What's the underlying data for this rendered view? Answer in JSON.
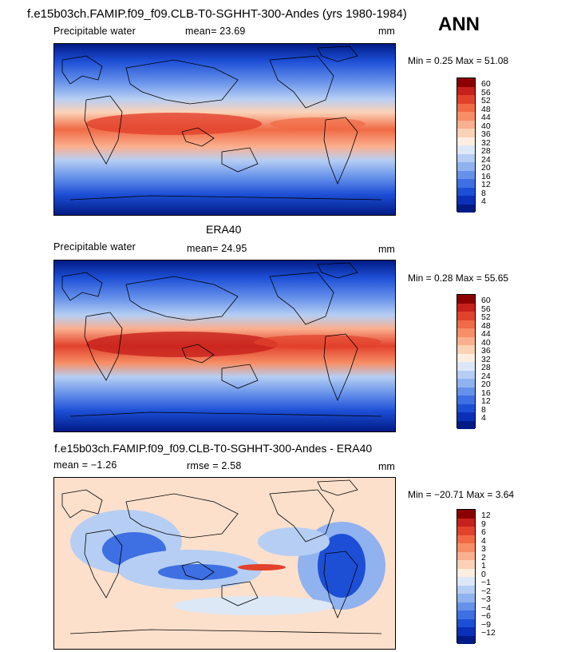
{
  "header": {
    "title": "f.e15b03ch.FAMIP.f09_f09.CLB-T0-SGHHT-300-Andes (yrs 1980-1984)",
    "season": "ANN"
  },
  "panel1": {
    "label": "Precipitable water",
    "mean_text": "mean=   23.69",
    "units": "mm",
    "minmax": "Min =    0.25  Max =   51.08"
  },
  "panel2": {
    "title": "ERA40",
    "label": "Precipitable water",
    "mean_text": "mean=   24.95",
    "units": "mm",
    "minmax": "Min =    0.28  Max =   55.65"
  },
  "panel3": {
    "title": "f.e15b03ch.FAMIP.f09_f09.CLB-T0-SGHHT-300-Andes - ERA40",
    "mean_text": "mean = −1.26",
    "rmse_text": "rmse =    2.58",
    "units": "mm",
    "minmax": "Min = −20.71  Max =    3.64"
  },
  "chart_data": [
    {
      "type": "heatmap",
      "title": "f.e15b03ch.FAMIP.f09_f09.CLB-T0-SGHHT-300-Andes (yrs 1980-1984)",
      "variable": "Precipitable water",
      "units": "mm",
      "mean": 23.69,
      "min": 0.25,
      "max": 51.08,
      "colorbar_levels": [
        "60",
        "56",
        "52",
        "48",
        "44",
        "40",
        "36",
        "32",
        "28",
        "24",
        "20",
        "16",
        "12",
        "8",
        "4"
      ],
      "colors": [
        "#8b0000",
        "#c7211c",
        "#e2412c",
        "#f06a45",
        "#f78e66",
        "#fbaf8e",
        "#fcd2b7",
        "#fdeee0",
        "#dde8f7",
        "#b6cef3",
        "#90b2ef",
        "#6691ea",
        "#3e70e3",
        "#1d4fd6",
        "#0b30b8",
        "#001b85"
      ]
    },
    {
      "type": "heatmap",
      "title": "ERA40",
      "variable": "Precipitable water",
      "units": "mm",
      "mean": 24.95,
      "min": 0.28,
      "max": 55.65,
      "colorbar_levels": [
        "60",
        "56",
        "52",
        "48",
        "44",
        "40",
        "36",
        "32",
        "28",
        "24",
        "20",
        "16",
        "12",
        "8",
        "4"
      ],
      "colors": [
        "#8b0000",
        "#c7211c",
        "#e2412c",
        "#f06a45",
        "#f78e66",
        "#fbaf8e",
        "#fcd2b7",
        "#fdeee0",
        "#dde8f7",
        "#b6cef3",
        "#90b2ef",
        "#6691ea",
        "#3e70e3",
        "#1d4fd6",
        "#0b30b8",
        "#001b85"
      ]
    },
    {
      "type": "heatmap",
      "title": "f.e15b03ch.FAMIP.f09_f09.CLB-T0-SGHHT-300-Andes - ERA40",
      "units": "mm",
      "mean": -1.26,
      "rmse": 2.58,
      "min": -20.71,
      "max": 3.64,
      "colorbar_levels": [
        "12",
        "9",
        "6",
        "4",
        "3",
        "2",
        "1",
        "0",
        "−1",
        "−2",
        "−3",
        "−4",
        "−6",
        "−9",
        "−12"
      ],
      "colors": [
        "#8b0000",
        "#c7211c",
        "#e2412c",
        "#f06a45",
        "#f78e66",
        "#fbaf8e",
        "#fcd2b7",
        "#fdeee0",
        "#dde8f7",
        "#b6cef3",
        "#90b2ef",
        "#6691ea",
        "#3e70e3",
        "#1d4fd6",
        "#0b30b8",
        "#001b85"
      ]
    }
  ]
}
